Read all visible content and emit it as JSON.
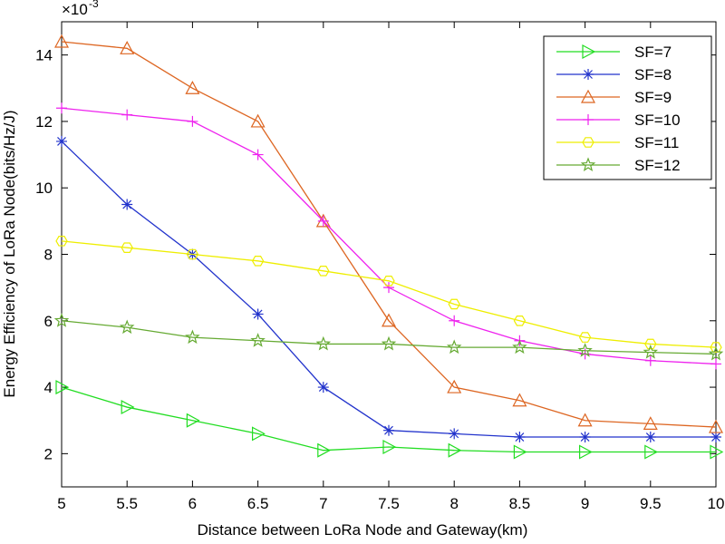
{
  "chart_data": {
    "type": "line",
    "xlabel": "Distance between LoRa Node and Gateway(km)",
    "ylabel": "Energy Efficiency of LoRa Node(bits/Hz/J)",
    "y_scale": {
      "base": "×10",
      "exponent": "-3"
    },
    "x": [
      5,
      5.5,
      6,
      6.5,
      7,
      7.5,
      8,
      8.5,
      9,
      9.5,
      10
    ],
    "xlim": [
      5,
      10
    ],
    "xticks": [
      5,
      5.5,
      6,
      6.5,
      7,
      7.5,
      8,
      8.5,
      9,
      9.5,
      10
    ],
    "ylim": [
      1,
      15
    ],
    "yticks": [
      2,
      4,
      6,
      8,
      10,
      12,
      14
    ],
    "legend": "upper right",
    "series": [
      {
        "name": "SF=7",
        "color": "#22dd22",
        "marker": "triangle-right",
        "values": [
          4.0,
          3.4,
          3.0,
          2.6,
          2.1,
          2.2,
          2.1,
          2.05,
          2.05,
          2.05,
          2.05
        ]
      },
      {
        "name": "SF=8",
        "color": "#2233cc",
        "marker": "asterisk",
        "values": [
          11.4,
          9.5,
          8.0,
          6.2,
          4.0,
          2.7,
          2.6,
          2.5,
          2.5,
          2.5,
          2.5
        ]
      },
      {
        "name": "SF=9",
        "color": "#dd6622",
        "marker": "triangle-up",
        "values": [
          14.4,
          14.2,
          13.0,
          12.0,
          9.0,
          6.0,
          4.0,
          3.6,
          3.0,
          2.9,
          2.8
        ]
      },
      {
        "name": "SF=10",
        "color": "#ee22ee",
        "marker": "plus",
        "values": [
          12.4,
          12.2,
          12.0,
          11.0,
          9.0,
          7.0,
          6.0,
          5.4,
          5.0,
          4.8,
          4.7
        ]
      },
      {
        "name": "SF=11",
        "color": "#eeee00",
        "marker": "hexagon",
        "values": [
          8.4,
          8.2,
          8.0,
          7.8,
          7.5,
          7.2,
          6.5,
          6.0,
          5.5,
          5.3,
          5.2
        ]
      },
      {
        "name": "SF=12",
        "color": "#66aa33",
        "marker": "pentagram",
        "values": [
          6.0,
          5.8,
          5.5,
          5.4,
          5.3,
          5.3,
          5.2,
          5.2,
          5.1,
          5.05,
          5.0
        ]
      }
    ]
  }
}
